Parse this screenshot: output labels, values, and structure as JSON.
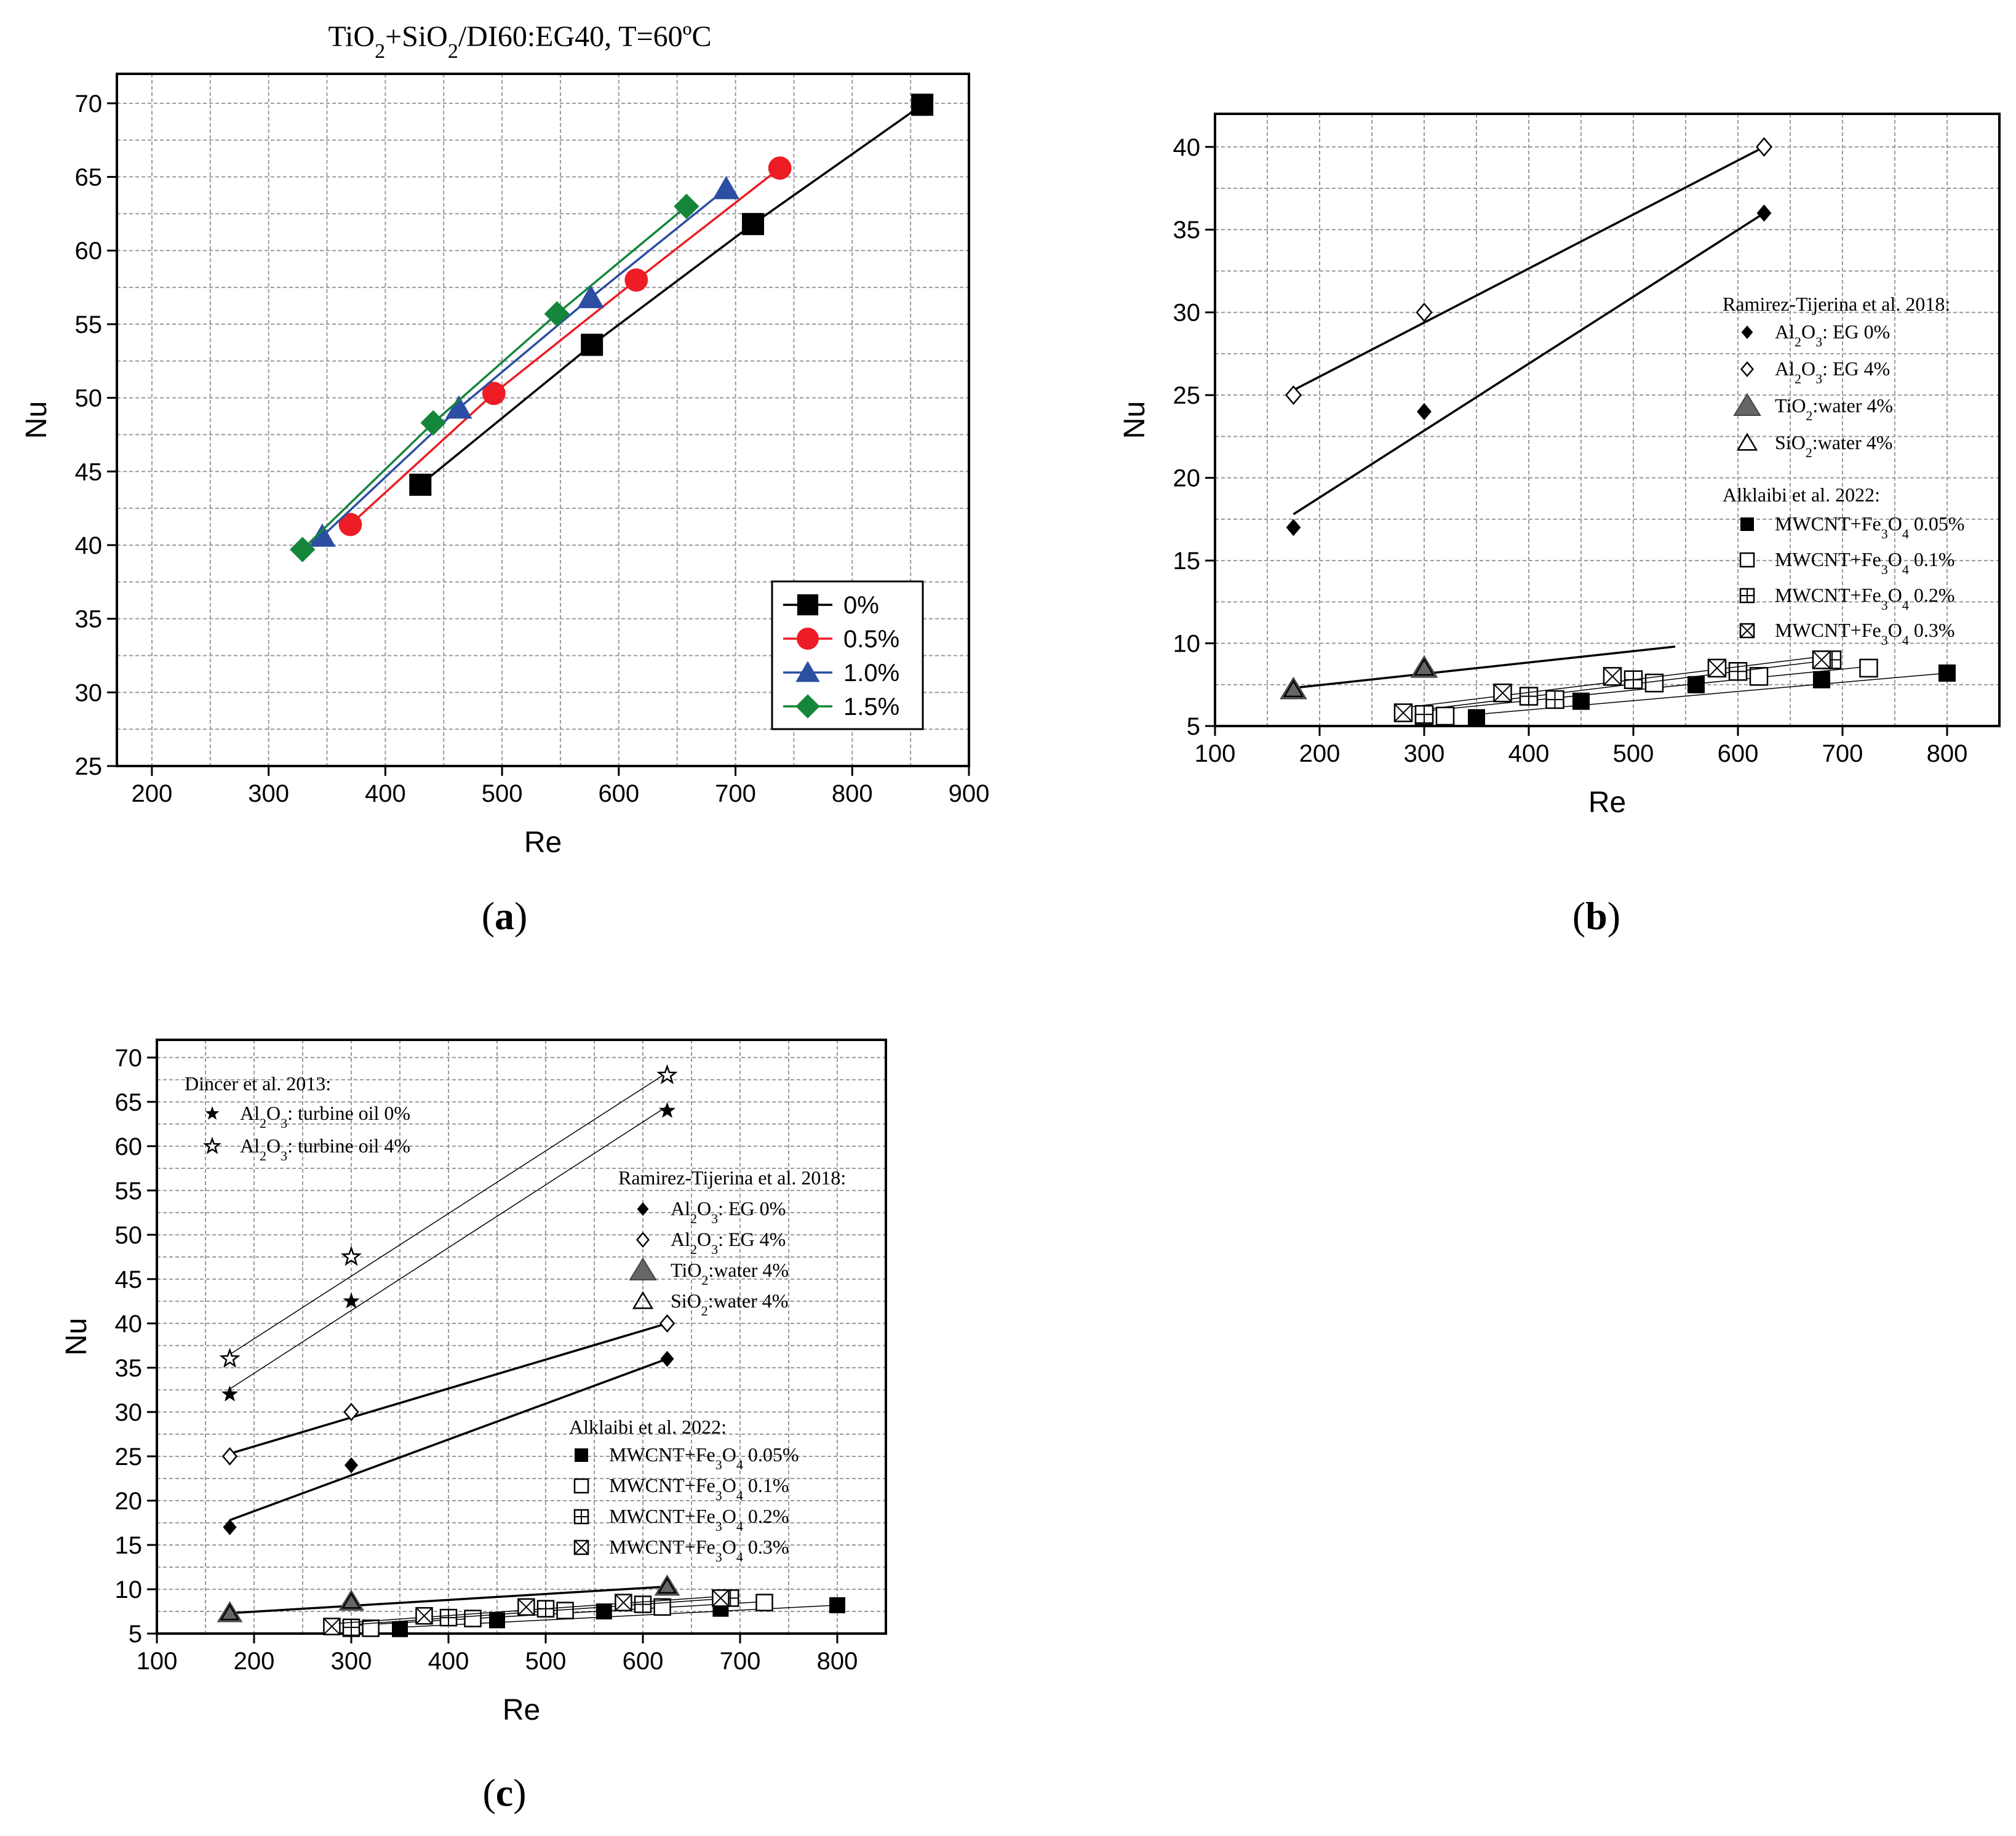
{
  "panels": [
    {
      "caption": "a",
      "chart_data": {
        "type": "line",
        "title": "TiO2+SiO2/DI60:EG40, T=60ºC",
        "title_parts": [
          "TiO",
          "2",
          "+SiO",
          "2",
          "/DI60:EG40, T=60ºC"
        ],
        "xlabel": "Re",
        "ylabel": "Nu",
        "xlim": [
          170,
          900
        ],
        "ylim": [
          25,
          72
        ],
        "xticks": [
          200,
          300,
          400,
          500,
          600,
          700,
          800,
          900
        ],
        "yticks": [
          25,
          30,
          35,
          40,
          45,
          50,
          55,
          60,
          65,
          70
        ],
        "grid": true,
        "legend_position": "bottom-right",
        "series": [
          {
            "name": "0%",
            "marker": "square",
            "color": "#000000",
            "x": [
              430,
              577,
              715,
              860
            ],
            "y": [
              44.1,
              53.6,
              61.8,
              69.9
            ]
          },
          {
            "name": "0.5%",
            "marker": "circle",
            "color": "#ee1c25",
            "x": [
              370,
              493,
              615,
              738
            ],
            "y": [
              41.4,
              50.3,
              58.0,
              65.6
            ]
          },
          {
            "name": "1.0%",
            "marker": "triangle",
            "color": "#2c4ea3",
            "x": [
              346,
              463,
              576,
              692
            ],
            "y": [
              40.6,
              49.3,
              56.8,
              64.2
            ]
          },
          {
            "name": "1.5%",
            "marker": "diamond",
            "color": "#14863c",
            "x": [
              329,
              441,
              547,
              658
            ],
            "y": [
              39.7,
              48.3,
              55.7,
              63.0
            ]
          }
        ]
      }
    },
    {
      "caption": "b",
      "chart_data": {
        "type": "scatter",
        "xlabel": "Re",
        "ylabel": "Nu",
        "xlim": [
          100,
          850
        ],
        "ylim": [
          5,
          42
        ],
        "xticks": [
          100,
          200,
          300,
          400,
          500,
          600,
          700,
          800
        ],
        "yticks": [
          5,
          10,
          15,
          20,
          25,
          30,
          35,
          40
        ],
        "grid": true,
        "legend_groups": [
          {
            "title": "Ramirez-Tijerina et al. 2018:",
            "entries": [
              {
                "parts": [
                  "Al",
                  "2",
                  "O",
                  "3",
                  ": EG 0%"
                ],
                "marker": "diamond-filled"
              },
              {
                "parts": [
                  "Al",
                  "2",
                  "O",
                  "3",
                  ": EG 4%"
                ],
                "marker": "diamond-open"
              },
              {
                "parts": [
                  "TiO",
                  "2",
                  ":water 4%",
                  "",
                  ""
                ],
                "marker": "triangle-filled"
              },
              {
                "parts": [
                  "SiO",
                  "2",
                  ":water 4%",
                  "",
                  ""
                ],
                "marker": "triangle-open"
              }
            ]
          },
          {
            "title": "Alklaibi et al. 2022:",
            "entries": [
              {
                "parts": [
                  "MWCNT+Fe",
                  "3",
                  "O",
                  "4",
                  " 0.05%"
                ],
                "marker": "square-filled"
              },
              {
                "parts": [
                  "MWCNT+Fe",
                  "3",
                  "O",
                  "4",
                  " 0.1%"
                ],
                "marker": "square-open"
              },
              {
                "parts": [
                  "MWCNT+Fe",
                  "3",
                  "O",
                  "4",
                  " 0.2%"
                ],
                "marker": "square-plus"
              },
              {
                "parts": [
                  "MWCNT+Fe",
                  "3",
                  "O",
                  "4",
                  " 0.3%"
                ],
                "marker": "square-x"
              }
            ]
          }
        ],
        "series": [
          {
            "name": "Al2O3: EG 0%",
            "marker": "diamond-filled",
            "x": [
              175,
              300,
              625
            ],
            "y": [
              17,
              24,
              36
            ],
            "fit": [
              [
                175,
                17.8
              ],
              [
                625,
                36
              ]
            ]
          },
          {
            "name": "Al2O3: EG 4%",
            "marker": "diamond-open",
            "x": [
              175,
              300,
              625
            ],
            "y": [
              25,
              30,
              40
            ],
            "fit": [
              [
                175,
                25.3
              ],
              [
                625,
                40
              ]
            ]
          },
          {
            "name": "TiO2:water 4%",
            "marker": "triangle-filled",
            "x": [
              175,
              300
            ],
            "y": [
              7.2,
              8.5
            ],
            "fit": [
              [
                175,
                7.3
              ],
              [
                540,
                9.8
              ]
            ]
          },
          {
            "name": "SiO2:water 4%",
            "marker": "triangle-open",
            "x": [
              175,
              300
            ],
            "y": [
              7.2,
              8.5
            ]
          },
          {
            "name": "MWCNT+Fe3O4 0.05%",
            "marker": "square-filled",
            "x": [
              350,
              450,
              560,
              680,
              800
            ],
            "y": [
              5.5,
              6.5,
              7.5,
              7.8,
              8.2
            ],
            "fit": [
              [
                350,
                5.7
              ],
              [
                800,
                8.2
              ]
            ]
          },
          {
            "name": "MWCNT+Fe3O4 0.1%",
            "marker": "square-open",
            "x": [
              300,
              320,
              520,
              620,
              725
            ],
            "y": [
              5.6,
              5.6,
              7.6,
              8.0,
              8.5
            ],
            "fit": [
              [
                300,
                5.9
              ],
              [
                725,
                8.6
              ]
            ]
          },
          {
            "name": "MWCNT+Fe3O4 0.2%",
            "marker": "square-plus",
            "x": [
              300,
              400,
              425,
              500,
              600,
              690
            ],
            "y": [
              5.7,
              6.8,
              6.6,
              7.8,
              8.3,
              9.0
            ],
            "fit": [
              [
                300,
                6.0
              ],
              [
                690,
                9.0
              ]
            ]
          },
          {
            "name": "MWCNT+Fe3O4 0.3%",
            "marker": "square-x",
            "x": [
              280,
              375,
              480,
              580,
              680
            ],
            "y": [
              5.8,
              7.0,
              8.0,
              8.5,
              9.0
            ],
            "fit": [
              [
                280,
                6.1
              ],
              [
                680,
                9.2
              ]
            ]
          }
        ]
      }
    },
    {
      "caption": "c",
      "chart_data": {
        "type": "scatter",
        "xlabel": "Re",
        "ylabel": "Nu",
        "xlim": [
          100,
          850
        ],
        "ylim": [
          5,
          72
        ],
        "xticks": [
          100,
          200,
          300,
          400,
          500,
          600,
          700,
          800
        ],
        "yticks": [
          5,
          10,
          15,
          20,
          25,
          30,
          35,
          40,
          45,
          50,
          55,
          60,
          65,
          70
        ],
        "grid": true,
        "legend_groups": [
          {
            "title": "Dincer et al. 2013:",
            "entries": [
              {
                "parts": [
                  "Al",
                  "2",
                  "O",
                  "3",
                  ": turbine oil 0%"
                ],
                "marker": "star-filled"
              },
              {
                "parts": [
                  "Al",
                  "2",
                  "O",
                  "3",
                  ": turbine oil 4%"
                ],
                "marker": "star-open"
              }
            ]
          },
          {
            "title": "Ramirez-Tijerina et al. 2018:",
            "entries": [
              {
                "parts": [
                  "Al",
                  "2",
                  "O",
                  "3",
                  ": EG 0%"
                ],
                "marker": "diamond-filled"
              },
              {
                "parts": [
                  "Al",
                  "2",
                  "O",
                  "3",
                  ": EG 4%"
                ],
                "marker": "diamond-open"
              },
              {
                "parts": [
                  "TiO",
                  "2",
                  ":water 4%",
                  "",
                  ""
                ],
                "marker": "triangle-filled"
              },
              {
                "parts": [
                  "SiO",
                  "2",
                  ":water 4%",
                  "",
                  ""
                ],
                "marker": "triangle-open"
              }
            ]
          },
          {
            "title": "Alklaibi et al. 2022:",
            "entries": [
              {
                "parts": [
                  "MWCNT+Fe",
                  "3",
                  "O",
                  "4",
                  " 0.05%"
                ],
                "marker": "square-filled"
              },
              {
                "parts": [
                  "MWCNT+Fe",
                  "3",
                  "O",
                  "4",
                  " 0.1%"
                ],
                "marker": "square-open"
              },
              {
                "parts": [
                  "MWCNT+Fe",
                  "3",
                  "O",
                  "4",
                  " 0.2%"
                ],
                "marker": "square-plus"
              },
              {
                "parts": [
                  "MWCNT+Fe",
                  "3",
                  "O",
                  "4",
                  " 0.3%"
                ],
                "marker": "square-x"
              }
            ]
          }
        ],
        "series": [
          {
            "name": "Al2O3: turbine oil 0%",
            "marker": "star-filled",
            "x": [
              175,
              300,
              625
            ],
            "y": [
              32,
              42.5,
              64
            ],
            "fit": [
              [
                175,
                32.6
              ],
              [
                625,
                64.5
              ]
            ]
          },
          {
            "name": "Al2O3: turbine oil 4%",
            "marker": "star-open",
            "x": [
              175,
              300,
              625
            ],
            "y": [
              36,
              47.5,
              68
            ],
            "fit": [
              [
                175,
                36.5
              ],
              [
                625,
                68.3
              ]
            ]
          },
          {
            "name": "Al2O3: EG 0%",
            "marker": "diamond-filled",
            "x": [
              175,
              300,
              625
            ],
            "y": [
              17,
              24,
              36
            ],
            "fit": [
              [
                175,
                17.8
              ],
              [
                625,
                36
              ]
            ]
          },
          {
            "name": "Al2O3: EG 4%",
            "marker": "diamond-open",
            "x": [
              175,
              300,
              625
            ],
            "y": [
              25,
              30,
              40
            ],
            "fit": [
              [
                175,
                25.3
              ],
              [
                625,
                40
              ]
            ]
          },
          {
            "name": "TiO2:water 4%",
            "marker": "triangle-filled",
            "x": [
              175,
              300,
              625
            ],
            "y": [
              7.3,
              8.6,
              10.3
            ],
            "fit": [
              [
                175,
                7.3
              ],
              [
                625,
                10.3
              ]
            ]
          },
          {
            "name": "SiO2:water 4%",
            "marker": "triangle-open",
            "x": [
              175,
              300,
              625
            ],
            "y": [
              7.3,
              8.6,
              10.3
            ]
          },
          {
            "name": "MWCNT+Fe3O4 0.05%",
            "marker": "square-filled",
            "x": [
              350,
              450,
              560,
              680,
              800
            ],
            "y": [
              5.5,
              6.5,
              7.5,
              7.8,
              8.2
            ],
            "fit": [
              [
                350,
                5.7
              ],
              [
                800,
                8.2
              ]
            ]
          },
          {
            "name": "MWCNT+Fe3O4 0.1%",
            "marker": "square-open",
            "x": [
              300,
              320,
              425,
              520,
              620,
              725
            ],
            "y": [
              5.6,
              5.6,
              6.7,
              7.6,
              8.0,
              8.5
            ],
            "fit": [
              [
                300,
                5.9
              ],
              [
                725,
                8.6
              ]
            ]
          },
          {
            "name": "MWCNT+Fe3O4 0.2%",
            "marker": "square-plus",
            "x": [
              300,
              400,
              500,
              600,
              690
            ],
            "y": [
              5.7,
              6.8,
              7.8,
              8.3,
              9.0
            ],
            "fit": [
              [
                300,
                6.0
              ],
              [
                690,
                9.0
              ]
            ]
          },
          {
            "name": "MWCNT+Fe3O4 0.3%",
            "marker": "square-x",
            "x": [
              280,
              375,
              480,
              580,
              680
            ],
            "y": [
              5.8,
              7.0,
              8.0,
              8.5,
              9.0
            ],
            "fit": [
              [
                280,
                6.1
              ],
              [
                680,
                9.2
              ]
            ]
          }
        ]
      }
    }
  ]
}
